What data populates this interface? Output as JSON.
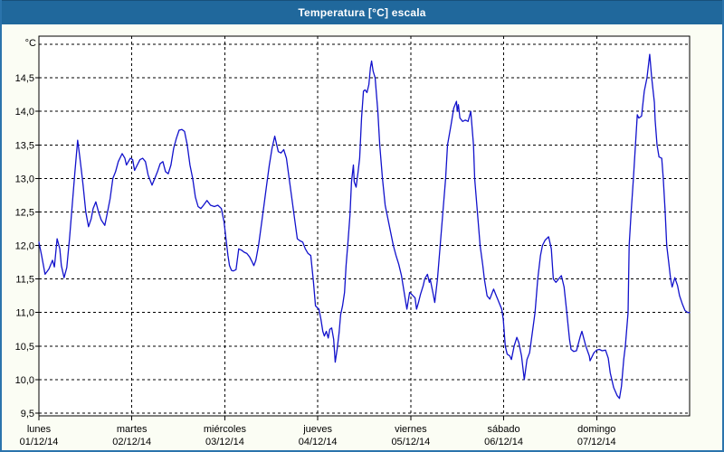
{
  "window": {
    "title": "Temperatura [°C] escala"
  },
  "colors": {
    "titlebar_bg": "#20689C",
    "titlebar_text": "#FFFFFF",
    "window_border": "#2B74AC",
    "page_bg": "#FBFDF4",
    "plot_bg": "#FFFFFF",
    "grid": "#000000",
    "axis_text": "#000000",
    "series_line": "#1212CC"
  },
  "chart_data": {
    "type": "line",
    "title": "Temperatura [°C] escala",
    "y_axis": {
      "unit_label": "°C",
      "tick_values": [
        14.5,
        14.0,
        13.5,
        13.0,
        12.5,
        12.0,
        11.5,
        11.0,
        10.5,
        10.0,
        9.5
      ],
      "tick_labels": [
        "14,5",
        "14,0",
        "13,5",
        "13,0",
        "12,5",
        "12,0",
        "11,5",
        "11,0",
        "10,5",
        "10,0",
        "9,5"
      ],
      "range": [
        9.5,
        15.0
      ],
      "gridlines": "dashed"
    },
    "x_axis": {
      "unit": "hours",
      "range": [
        0,
        168
      ],
      "day_ticks": [
        {
          "name": "lunes",
          "date": "01/12/14"
        },
        {
          "name": "martes",
          "date": "02/12/14"
        },
        {
          "name": "miércoles",
          "date": "03/12/14"
        },
        {
          "name": "jueves",
          "date": "04/12/14"
        },
        {
          "name": "viernes",
          "date": "05/12/14"
        },
        {
          "name": "sábado",
          "date": "06/12/14"
        },
        {
          "name": "domingo",
          "date": "07/12/14"
        }
      ],
      "gridlines": "dashed-at-day-boundaries"
    },
    "legend": "none",
    "series": [
      {
        "name": "Temperatura",
        "color": "#1212CC",
        "points": [
          [
            0,
            12.05
          ],
          [
            0.7,
            11.85
          ],
          [
            1.6,
            11.57
          ],
          [
            2.6,
            11.65
          ],
          [
            3.5,
            11.78
          ],
          [
            4,
            11.68
          ],
          [
            4.7,
            12.1
          ],
          [
            5.4,
            11.95
          ],
          [
            5.8,
            11.7
          ],
          [
            6.5,
            11.52
          ],
          [
            7.2,
            11.67
          ],
          [
            7.9,
            12.1
          ],
          [
            8.6,
            12.6
          ],
          [
            9.3,
            13.1
          ],
          [
            10,
            13.57
          ],
          [
            10.5,
            13.35
          ],
          [
            11,
            13.1
          ],
          [
            11.4,
            12.9
          ],
          [
            12.1,
            12.5
          ],
          [
            12.8,
            12.28
          ],
          [
            13.5,
            12.4
          ],
          [
            14,
            12.55
          ],
          [
            14.7,
            12.65
          ],
          [
            15.4,
            12.5
          ],
          [
            16.1,
            12.38
          ],
          [
            17,
            12.3
          ],
          [
            17.7,
            12.5
          ],
          [
            18.4,
            12.7
          ],
          [
            19.1,
            13
          ],
          [
            19.8,
            13.1
          ],
          [
            20.5,
            13.25
          ],
          [
            21.5,
            13.37
          ],
          [
            22.2,
            13.3
          ],
          [
            22.6,
            13.2
          ],
          [
            23.6,
            13.3
          ],
          [
            24.2,
            13.28
          ],
          [
            24.7,
            13.12
          ],
          [
            25.4,
            13.2
          ],
          [
            26.1,
            13.28
          ],
          [
            26.8,
            13.3
          ],
          [
            27.5,
            13.25
          ],
          [
            28.2,
            13.05
          ],
          [
            29.2,
            12.9
          ],
          [
            29.9,
            13
          ],
          [
            30.6,
            13.1
          ],
          [
            31.3,
            13.22
          ],
          [
            32,
            13.25
          ],
          [
            32.7,
            13.1
          ],
          [
            33.4,
            13.07
          ],
          [
            34.1,
            13.2
          ],
          [
            34.8,
            13.45
          ],
          [
            35.5,
            13.6
          ],
          [
            36.2,
            13.72
          ],
          [
            36.9,
            13.73
          ],
          [
            37.6,
            13.7
          ],
          [
            38.3,
            13.5
          ],
          [
            39,
            13.2
          ],
          [
            39.7,
            13
          ],
          [
            40.4,
            12.72
          ],
          [
            41.1,
            12.58
          ],
          [
            41.8,
            12.55
          ],
          [
            42.5,
            12.6
          ],
          [
            43.4,
            12.67
          ],
          [
            44.3,
            12.6
          ],
          [
            45.3,
            12.58
          ],
          [
            46.2,
            12.6
          ],
          [
            47.1,
            12.55
          ],
          [
            47.8,
            12.35
          ],
          [
            48.3,
            12.1
          ],
          [
            48.8,
            11.85
          ],
          [
            49.2,
            11.7
          ],
          [
            49.7,
            11.63
          ],
          [
            50.2,
            11.62
          ],
          [
            50.9,
            11.64
          ],
          [
            51.6,
            11.95
          ],
          [
            52.3,
            11.93
          ],
          [
            53,
            11.9
          ],
          [
            53.7,
            11.88
          ],
          [
            54.4,
            11.83
          ],
          [
            55.1,
            11.75
          ],
          [
            55.5,
            11.7
          ],
          [
            56,
            11.78
          ],
          [
            56.7,
            12
          ],
          [
            57.4,
            12.3
          ],
          [
            58.1,
            12.6
          ],
          [
            58.8,
            12.9
          ],
          [
            59.5,
            13.2
          ],
          [
            60.2,
            13.45
          ],
          [
            60.9,
            13.63
          ],
          [
            61.4,
            13.5
          ],
          [
            61.8,
            13.4
          ],
          [
            62.5,
            13.38
          ],
          [
            63.2,
            13.43
          ],
          [
            63.9,
            13.3
          ],
          [
            64.6,
            13
          ],
          [
            65.3,
            12.7
          ],
          [
            66,
            12.4
          ],
          [
            66.7,
            12.1
          ],
          [
            67.4,
            12.07
          ],
          [
            68.1,
            12.05
          ],
          [
            68.8,
            11.95
          ],
          [
            69.5,
            11.88
          ],
          [
            70.2,
            11.85
          ],
          [
            70.9,
            11.45
          ],
          [
            71.4,
            11.1
          ],
          [
            71.9,
            11.07
          ],
          [
            72.3,
            11.05
          ],
          [
            72.8,
            10.9
          ],
          [
            73.3,
            10.72
          ],
          [
            73.7,
            10.65
          ],
          [
            74.2,
            10.72
          ],
          [
            74.7,
            10.62
          ],
          [
            75.1,
            10.75
          ],
          [
            75.6,
            10.77
          ],
          [
            76.1,
            10.6
          ],
          [
            76.5,
            10.26
          ],
          [
            77,
            10.45
          ],
          [
            77.5,
            10.7
          ],
          [
            77.9,
            10.97
          ],
          [
            78.4,
            11.1
          ],
          [
            78.9,
            11.3
          ],
          [
            79.3,
            11.7
          ],
          [
            79.8,
            12.05
          ],
          [
            80.3,
            12.45
          ],
          [
            80.7,
            12.95
          ],
          [
            81.2,
            13.2
          ],
          [
            81.4,
            12.95
          ],
          [
            81.9,
            12.87
          ],
          [
            82.4,
            13.1
          ],
          [
            82.8,
            13.3
          ],
          [
            83.3,
            13.9
          ],
          [
            83.8,
            14.3
          ],
          [
            84.2,
            14.32
          ],
          [
            84.7,
            14.28
          ],
          [
            85.2,
            14.4
          ],
          [
            85.6,
            14.65
          ],
          [
            85.9,
            14.75
          ],
          [
            86.3,
            14.6
          ],
          [
            86.8,
            14.5
          ],
          [
            87.5,
            14
          ],
          [
            88,
            13.5
          ],
          [
            88.7,
            13
          ],
          [
            89.4,
            12.6
          ],
          [
            90.1,
            12.4
          ],
          [
            90.8,
            12.2
          ],
          [
            91.5,
            12
          ],
          [
            92.2,
            11.85
          ],
          [
            92.9,
            11.72
          ],
          [
            93.6,
            11.55
          ],
          [
            94.3,
            11.3
          ],
          [
            95,
            11.05
          ],
          [
            95.7,
            11.3
          ],
          [
            96.1,
            11.28
          ],
          [
            96.6,
            11.25
          ],
          [
            97.1,
            11.22
          ],
          [
            97.5,
            11.05
          ],
          [
            98,
            11.15
          ],
          [
            98.5,
            11.27
          ],
          [
            99.2,
            11.4
          ],
          [
            99.6,
            11.5
          ],
          [
            100.3,
            11.57
          ],
          [
            100.8,
            11.45
          ],
          [
            101,
            11.5
          ],
          [
            101.7,
            11.3
          ],
          [
            102.2,
            11.15
          ],
          [
            102.9,
            11.5
          ],
          [
            103.6,
            12
          ],
          [
            104.3,
            12.5
          ],
          [
            105,
            13
          ],
          [
            105.5,
            13.5
          ],
          [
            106.4,
            13.8
          ],
          [
            107.1,
            14.05
          ],
          [
            107.8,
            14.15
          ],
          [
            108,
            14
          ],
          [
            108.3,
            14.1
          ],
          [
            108.7,
            13.9
          ],
          [
            109.4,
            13.85
          ],
          [
            110.1,
            13.87
          ],
          [
            110.8,
            13.85
          ],
          [
            111.5,
            14
          ],
          [
            112.2,
            13.5
          ],
          [
            112.5,
            13
          ],
          [
            113.2,
            12.5
          ],
          [
            113.9,
            12
          ],
          [
            114.6,
            11.7
          ],
          [
            115,
            11.5
          ],
          [
            115.7,
            11.25
          ],
          [
            116.4,
            11.2
          ],
          [
            117.4,
            11.35
          ],
          [
            118.1,
            11.25
          ],
          [
            118.8,
            11.15
          ],
          [
            119.5,
            11.05
          ],
          [
            119.9,
            10.9
          ],
          [
            120.4,
            10.5
          ],
          [
            120.9,
            10.38
          ],
          [
            121.6,
            10.35
          ],
          [
            122,
            10.3
          ],
          [
            122.7,
            10.5
          ],
          [
            123.4,
            10.63
          ],
          [
            123.9,
            10.55
          ],
          [
            124.6,
            10.35
          ],
          [
            125.3,
            10
          ],
          [
            126,
            10.3
          ],
          [
            126.7,
            10.4
          ],
          [
            127.4,
            10.7
          ],
          [
            128.1,
            11
          ],
          [
            128.8,
            11.5
          ],
          [
            129.5,
            11.85
          ],
          [
            130,
            12
          ],
          [
            130.7,
            12.08
          ],
          [
            131.6,
            12.13
          ],
          [
            132.3,
            11.95
          ],
          [
            132.8,
            11.5
          ],
          [
            133.5,
            11.45
          ],
          [
            134.2,
            11.5
          ],
          [
            134.9,
            11.55
          ],
          [
            135.6,
            11.38
          ],
          [
            136.3,
            11
          ],
          [
            137,
            10.6
          ],
          [
            137.4,
            10.45
          ],
          [
            138.1,
            10.42
          ],
          [
            138.8,
            10.43
          ],
          [
            139.8,
            10.65
          ],
          [
            140.2,
            10.72
          ],
          [
            141.2,
            10.5
          ],
          [
            142.1,
            10.35
          ],
          [
            142.3,
            10.28
          ],
          [
            143.3,
            10.4
          ],
          [
            144,
            10.44
          ],
          [
            144.7,
            10.45
          ],
          [
            145.4,
            10.43
          ],
          [
            146.3,
            10.44
          ],
          [
            147,
            10.32
          ],
          [
            147.5,
            10.1
          ],
          [
            148.4,
            9.88
          ],
          [
            149.3,
            9.76
          ],
          [
            149.9,
            9.72
          ],
          [
            150.4,
            9.9
          ],
          [
            151,
            10.3
          ],
          [
            151.4,
            10.5
          ],
          [
            152.1,
            11
          ],
          [
            152.4,
            12
          ],
          [
            152.9,
            12.5
          ],
          [
            153.5,
            13
          ],
          [
            154.5,
            13.95
          ],
          [
            154.9,
            13.9
          ],
          [
            155.6,
            13.93
          ],
          [
            156.3,
            14.3
          ],
          [
            157,
            14.5
          ],
          [
            157.7,
            14.85
          ],
          [
            158.2,
            14.5
          ],
          [
            158.9,
            14.13
          ],
          [
            159.1,
            13.87
          ],
          [
            159.6,
            13.5
          ],
          [
            160.1,
            13.32
          ],
          [
            160.8,
            13.3
          ],
          [
            161.2,
            13
          ],
          [
            161.7,
            12.5
          ],
          [
            162.1,
            12
          ],
          [
            162.6,
            11.75
          ],
          [
            163.1,
            11.5
          ],
          [
            163.5,
            11.38
          ],
          [
            164.2,
            11.52
          ],
          [
            164.9,
            11.4
          ],
          [
            165.4,
            11.25
          ],
          [
            166.1,
            11.13
          ],
          [
            166.8,
            11.03
          ],
          [
            167.5,
            11
          ],
          [
            168,
            11
          ]
        ]
      }
    ]
  }
}
